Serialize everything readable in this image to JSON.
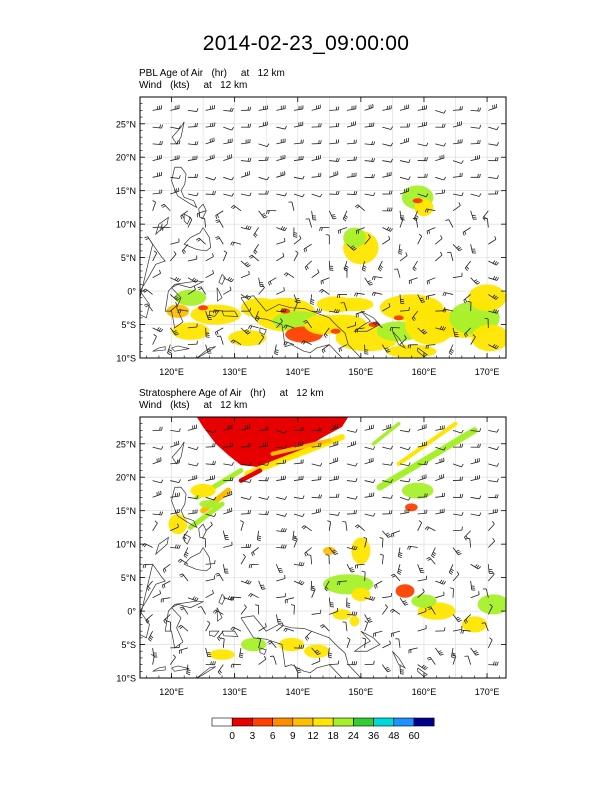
{
  "title": "2014-02-23_09:00:00",
  "panels": [
    {
      "id": "pbl",
      "line1": "PBL Age of Air   (hr)     at   12 km",
      "line2": "Wind   (kts)     at   12 km",
      "lat_labels": [
        "25°N",
        "20°N",
        "15°N",
        "10°N",
        "5°N",
        "0°",
        "5°S",
        "10°S"
      ],
      "lon_labels": [
        "120°E",
        "130°E",
        "140°E",
        "150°E",
        "160°E",
        "170°E"
      ]
    },
    {
      "id": "strat",
      "line1": "Stratosphere Age of Air   (hr)     at   12 km",
      "line2": "Wind   (kts)     at   12 km",
      "lat_labels": [
        "25°N",
        "20°N",
        "15°N",
        "10°N",
        "5°N",
        "0°",
        "5°S",
        "10°S"
      ],
      "lon_labels": [
        "120°E",
        "130°E",
        "140°E",
        "150°E",
        "160°E",
        "170°E"
      ]
    }
  ],
  "colorbar": {
    "labels": [
      "0",
      "3",
      "6",
      "9",
      "12",
      "18",
      "24",
      "36",
      "48",
      "60"
    ],
    "colors": [
      "#ffffff",
      "#e60000",
      "#ff4000",
      "#ff8c00",
      "#ffbf00",
      "#ffe600",
      "#a6f02a",
      "#33cc33",
      "#00d9d9",
      "#1e90ff",
      "#00008b"
    ]
  },
  "chart_data": {
    "type": "map",
    "lon_range": [
      115,
      173
    ],
    "lat_range": [
      -10,
      29
    ],
    "tracer_units": "hr",
    "level": "12 km"
  }
}
